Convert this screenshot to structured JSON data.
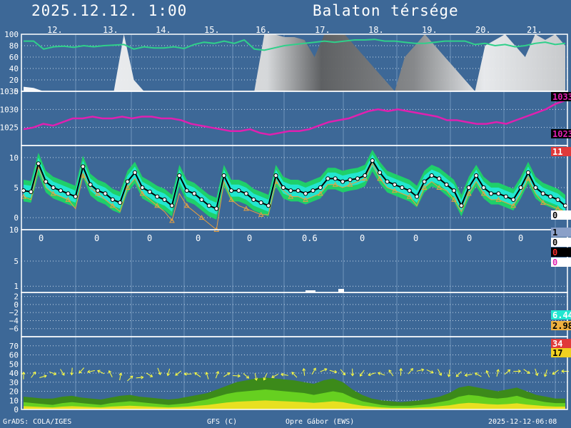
{
  "header": {
    "datetime": "2025.12.12. 1:00",
    "location": "Balaton térsége"
  },
  "footer": {
    "left": "GrADS: COLA/IGES",
    "center_left": "GFS (C)",
    "center_right": "Opre Gábor (EWS)",
    "right": "2025-12-12-06:08"
  },
  "colors": {
    "background": "#3d6897",
    "frame": "#ffffff",
    "humidity": "#2fd08a",
    "pressure": "#e020b0",
    "temp_band_outer": "#1fcf6a",
    "temp_band_inner": "#22e6d0",
    "dewpoint": "#e8a040",
    "wind_arrow": "#ffff40",
    "wind_fill_dark": "#3c8a1a",
    "wind_fill_light": "#66d020",
    "wind_fill_yellow": "#e8e020"
  },
  "chart_data": [
    {
      "type": "area",
      "panel": "cloud-humidity",
      "day_labels": [
        "12.",
        "13.",
        "14.",
        "15.",
        "16.",
        "17.",
        "18.",
        "19.",
        "20.",
        "21."
      ],
      "ylim": [
        0,
        100
      ],
      "yticks": [
        "100",
        "80",
        "60",
        "40",
        "20",
        "0"
      ],
      "series": [
        {
          "values": [
            88,
            88,
            74,
            78,
            79,
            77,
            80,
            78,
            80,
            81,
            82,
            74,
            78,
            76,
            76,
            78,
            75,
            82,
            86,
            84,
            88,
            84,
            90,
            74,
            72,
            76,
            80,
            82,
            84,
            86,
            88,
            86,
            88,
            90,
            90,
            91,
            88,
            88,
            86,
            84,
            84,
            86,
            88,
            88,
            88,
            82,
            84,
            80,
            82,
            78,
            80,
            84,
            86,
            82,
            84
          ]
        },
        {
          "values": [
            8,
            6,
            0,
            0,
            0,
            0,
            0,
            0,
            0,
            0,
            100,
            20,
            0,
            0,
            0,
            0,
            0,
            0,
            0,
            0,
            0,
            0,
            0,
            0,
            100,
            100,
            95,
            95,
            90,
            60,
            100,
            100,
            100,
            80,
            60,
            40,
            20,
            0,
            60,
            80,
            100,
            80,
            60,
            40,
            20,
            0,
            80,
            90,
            100,
            80,
            60,
            100,
            90,
            100,
            80
          ]
        }
      ]
    },
    {
      "type": "line",
      "panel": "pressure",
      "ylim": [
        1020,
        1035
      ],
      "yticks": [
        "1035",
        "1030",
        "1025"
      ],
      "right_labels": [
        "1033",
        "1023"
      ],
      "series": [
        {
          "values": [
            1024.5,
            1025,
            1026,
            1025.5,
            1026.5,
            1027.5,
            1027.5,
            1028,
            1027.5,
            1027.5,
            1028,
            1027.5,
            1028,
            1028,
            1027.5,
            1027.5,
            1027,
            1026,
            1025.5,
            1025,
            1024.5,
            1024,
            1024,
            1024.5,
            1023.5,
            1023,
            1023.5,
            1024,
            1024,
            1024.5,
            1025.5,
            1026.5,
            1027,
            1027.5,
            1028.5,
            1029.5,
            1030,
            1029.5,
            1030,
            1029.5,
            1029,
            1028.5,
            1028,
            1027,
            1027,
            1026.5,
            1026,
            1026,
            1026.5,
            1026,
            1027,
            1028,
            1029,
            1030,
            1031.5,
            1032.5
          ]
        }
      ]
    },
    {
      "type": "line",
      "panel": "temperature",
      "ylim": [
        -2,
        12
      ],
      "yticks": [
        "10",
        "5",
        "0"
      ],
      "right_labels": [
        "11",
        "0"
      ],
      "series": [
        {
          "values": [
            4.5,
            4.3,
            9,
            6,
            5,
            4.5,
            4,
            3.5,
            8.5,
            5.5,
            4.5,
            4,
            3,
            2.5,
            6,
            7.5,
            5,
            4.3,
            3.5,
            3,
            2,
            7,
            4.5,
            4,
            3,
            2,
            1.5,
            7,
            4.5,
            4.5,
            4,
            3,
            2.5,
            2,
            7,
            5,
            4.5,
            4.5,
            4,
            4.5,
            5,
            6.5,
            6.5,
            6,
            6.3,
            6.5,
            7,
            9.5,
            7.5,
            6,
            5.5,
            5,
            4.5,
            3.5,
            6,
            7,
            6.5,
            5.5,
            4.5,
            2,
            5,
            7,
            5,
            4,
            4,
            3.5,
            3,
            5,
            7.5,
            5,
            4,
            3.5,
            3,
            2
          ]
        },
        {
          "values": [
            3.5,
            3,
            8.5,
            5,
            4,
            3.5,
            3,
            1.5,
            7,
            5,
            4,
            3,
            2,
            1,
            5,
            6.5,
            4,
            3,
            2,
            1,
            -0.5,
            4,
            2,
            1,
            0,
            -1,
            -2,
            6,
            3,
            2,
            1.5,
            1,
            0.5,
            0.5,
            6,
            4.5,
            3.5,
            3.5,
            3,
            3.5,
            4,
            5.5,
            5.5,
            5,
            5.5,
            6,
            6.5,
            9,
            6.5,
            5,
            4.5,
            4,
            3.5,
            2,
            5,
            6,
            5,
            4.5,
            3,
            1,
            4,
            6,
            4,
            3,
            3,
            2.5,
            2,
            4,
            6.5,
            4,
            2.5,
            2,
            1.5,
            1
          ]
        }
      ]
    },
    {
      "type": "bar",
      "panel": "precipitation",
      "ylim": [
        0,
        10
      ],
      "yticks": [
        "10",
        "5",
        "1"
      ],
      "day_totals": [
        "0",
        "0",
        "0",
        "0",
        "0",
        "0.6",
        "0",
        "0",
        "0",
        "0"
      ],
      "right_labels": [
        "1",
        "0",
        "0",
        "0"
      ]
    },
    {
      "type": "line",
      "panel": "instability",
      "ylim": [
        -8,
        3
      ],
      "yticks": [
        "2",
        "0",
        "−2",
        "−4",
        "−6"
      ],
      "right_labels": [
        "6.44",
        "2.98"
      ]
    },
    {
      "type": "area",
      "panel": "wind",
      "ylim": [
        0,
        80
      ],
      "yticks": [
        "70",
        "60",
        "50",
        "40",
        "30",
        "20",
        "10",
        "0"
      ],
      "right_labels": [
        "34",
        "17"
      ],
      "series": [
        {
          "values": [
            14,
            13,
            12,
            12,
            14,
            15,
            13,
            12,
            11,
            13,
            15,
            16,
            14,
            13,
            12,
            11,
            12,
            14,
            16,
            18,
            22,
            26,
            30,
            32,
            34,
            35,
            34,
            33,
            32,
            30,
            28,
            32,
            34,
            30,
            22,
            16,
            12,
            10,
            9,
            8,
            9,
            10,
            12,
            14,
            18,
            24,
            26,
            24,
            22,
            20,
            22,
            24,
            20,
            16,
            14,
            12,
            12
          ]
        },
        {
          "values": [
            8,
            7,
            6,
            5,
            7,
            8,
            7,
            6,
            5,
            7,
            8,
            9,
            8,
            7,
            6,
            5,
            6,
            7,
            9,
            11,
            14,
            17,
            19,
            20,
            21,
            22,
            21,
            20,
            19,
            18,
            16,
            18,
            20,
            18,
            13,
            9,
            7,
            5,
            4,
            4,
            4,
            5,
            6,
            8,
            10,
            14,
            16,
            15,
            13,
            12,
            13,
            15,
            12,
            10,
            8,
            7,
            7
          ]
        },
        {
          "values": [
            37,
            38,
            36,
            40,
            41,
            42,
            43,
            42,
            41,
            39,
            36,
            34,
            35,
            38,
            42,
            41,
            40,
            39,
            38,
            37,
            38,
            38,
            37,
            37,
            36,
            36,
            37,
            38,
            38,
            41,
            42,
            43,
            42,
            41,
            41,
            40,
            39,
            39,
            40,
            41,
            42,
            43,
            42,
            41,
            40,
            39,
            38,
            38,
            39,
            40,
            41,
            42,
            42,
            41,
            40,
            41,
            42
          ]
        }
      ]
    }
  ]
}
